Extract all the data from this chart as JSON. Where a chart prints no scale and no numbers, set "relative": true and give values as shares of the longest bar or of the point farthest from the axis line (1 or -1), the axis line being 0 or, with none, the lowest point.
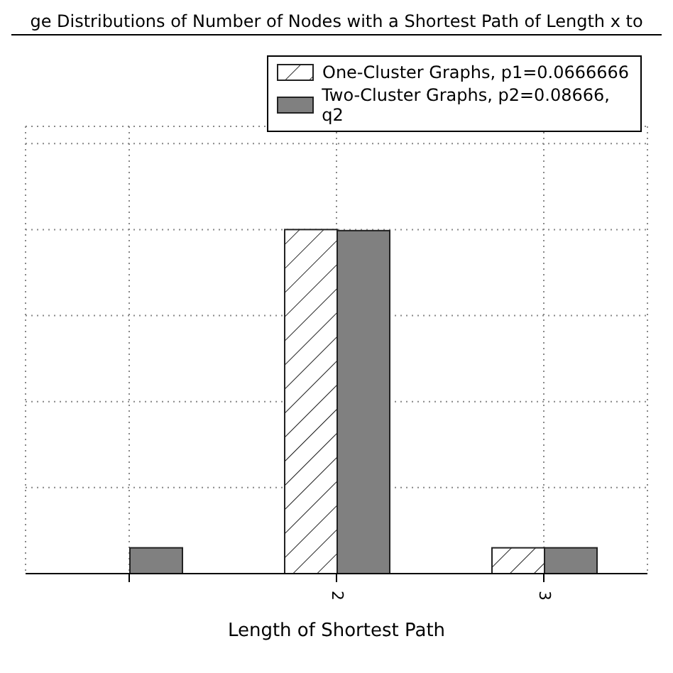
{
  "chart_data": {
    "type": "bar",
    "title": "ge Distributions of Number of Nodes with a Shortest Path of Length x to",
    "xlabel": "Length of Shortest Path",
    "relative": true,
    "categories": [
      null,
      "2",
      "3"
    ],
    "series": [
      {
        "name": "One-Cluster Graphs, p1=0.0666666",
        "color": "#ffffff",
        "values": [
          null,
          1,
          0.075
        ]
      },
      {
        "name": "Two-Cluster Graphs, p2=0.08666, q2",
        "color": "#808080",
        "values": [
          0.075,
          0.997,
          0.075
        ]
      }
    ],
    "grid": true,
    "legend": "top right"
  }
}
